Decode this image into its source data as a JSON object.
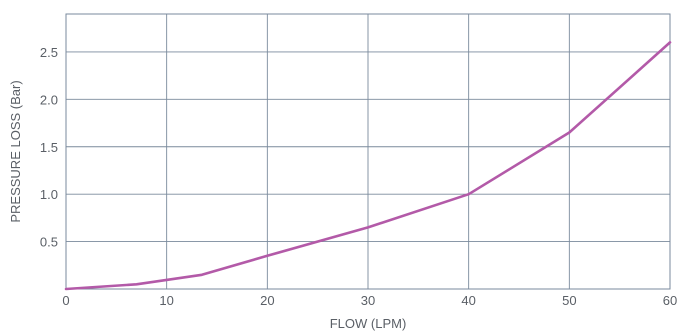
{
  "chart_data": {
    "type": "line",
    "title": "",
    "xlabel": "FLOW (LPM)",
    "ylabel": "PRESSURE LOSS (Bar)",
    "xlim": [
      0,
      60
    ],
    "ylim": [
      0,
      2.9
    ],
    "x_ticks": [
      0,
      10,
      20,
      30,
      40,
      50,
      60
    ],
    "x_tick_labels": [
      "0",
      "10",
      "20",
      "30",
      "40",
      "50",
      "60"
    ],
    "y_ticks": [
      0.5,
      1.0,
      1.5,
      2.0,
      2.5
    ],
    "y_tick_labels": [
      "0.5",
      "1.0",
      "1.5",
      "2.0",
      "2.5"
    ],
    "grid": true,
    "line_color": "#b35aa8",
    "grid_color": "#7a8a9c",
    "series": [
      {
        "x": [
          0,
          7,
          13.5,
          20,
          30,
          40,
          50,
          60
        ],
        "y": [
          0.0,
          0.05,
          0.15,
          0.35,
          0.65,
          1.0,
          1.65,
          2.6
        ]
      }
    ]
  }
}
